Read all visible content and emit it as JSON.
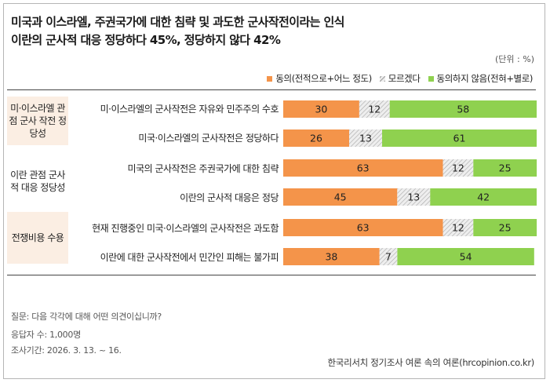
{
  "title_line1": "미국과 이스라엘, 주권국가에 대한 침략 및 과도한 군사작전이라는 인식",
  "title_line2": "이란의 군사적 대응 정당하다 45%, 정당하지 않다 42%",
  "unit": "(단위 : %)",
  "colors": {
    "agree": "#f4944a",
    "neutral": "#e6e6e6",
    "disagree": "#8fd14f",
    "group_bg": "#fbeee3"
  },
  "chart_data": {
    "type": "bar",
    "orientation": "horizontal",
    "stacked": true,
    "xlim": [
      0,
      100
    ],
    "legend": [
      "동의(전적으로+어느 정도)",
      "모르겠다",
      "동의하지 않음(전혀+별로)"
    ],
    "groups": [
      {
        "label": "미·이스라엘 관점 군사 작전 정당성",
        "rows": [
          0,
          1
        ]
      },
      {
        "label": "이란 관점 군사적 대응 정당성",
        "rows": [
          2,
          3
        ]
      },
      {
        "label": "전쟁비용 수용",
        "rows": [
          4,
          5
        ]
      }
    ],
    "categories": [
      "미·이스라엘의 군사작전은 자유와 민주주의 수호",
      "미국·이스라엘의 군사작전은 정당하다",
      "미국의 군사작전은 주권국가에 대한 침략",
      "이란의 군사적 대응은 정당",
      "현재 진행중인 미국·이스라엘의 군사작전은 과도함",
      "이란에 대한 군사작전에서 민간인 피해는 불가피"
    ],
    "series": [
      {
        "name": "동의(전적으로+어느 정도)",
        "values": [
          30,
          26,
          63,
          45,
          63,
          38
        ]
      },
      {
        "name": "모르겠다",
        "values": [
          12,
          13,
          12,
          13,
          12,
          7
        ]
      },
      {
        "name": "동의하지 않음(전혀+별로)",
        "values": [
          58,
          61,
          25,
          42,
          25,
          54
        ]
      }
    ]
  },
  "footnotes": [
    "질문: 다음 각각에 대해 어떤 의견이십니까?",
    "응답자 수: 1,000명",
    "조사기간: 2026. 3. 13. ~ 16."
  ],
  "source": "한국리서치 정기조사 여론 속의 여론(hrcopinion.co.kr)"
}
